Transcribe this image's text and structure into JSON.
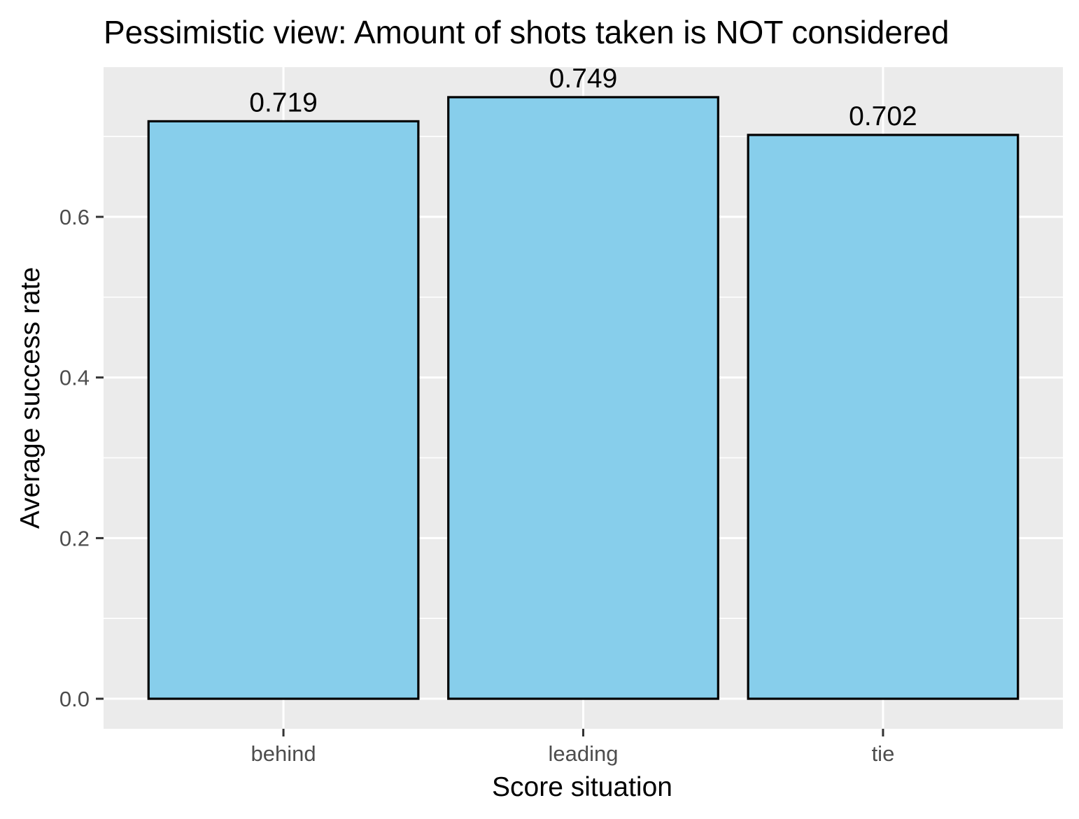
{
  "chart_data": {
    "type": "bar",
    "title": "Pessimistic view: Amount of shots taken is NOT considered",
    "xlabel": "Score situation",
    "ylabel": "Average success rate",
    "categories": [
      "behind",
      "leading",
      "tie"
    ],
    "values": [
      0.719,
      0.749,
      0.702
    ],
    "data_labels": [
      "0.719",
      "0.749",
      "0.702"
    ],
    "yticks": [
      {
        "value": 0.0,
        "label": "0.0"
      },
      {
        "value": 0.2,
        "label": "0.2"
      },
      {
        "value": 0.4,
        "label": "0.4"
      },
      {
        "value": 0.6,
        "label": "0.6"
      }
    ],
    "ylim": [
      -0.0374,
      0.7864
    ],
    "grid": true,
    "legend": "none",
    "colors": {
      "bar_fill": "#87CEEB",
      "bar_outline": "#000000",
      "panel_background": "#EBEBEB",
      "grid_major": "#FFFFFF",
      "grid_minor": "#FFFFFF",
      "tick_mark": "#333333"
    }
  }
}
